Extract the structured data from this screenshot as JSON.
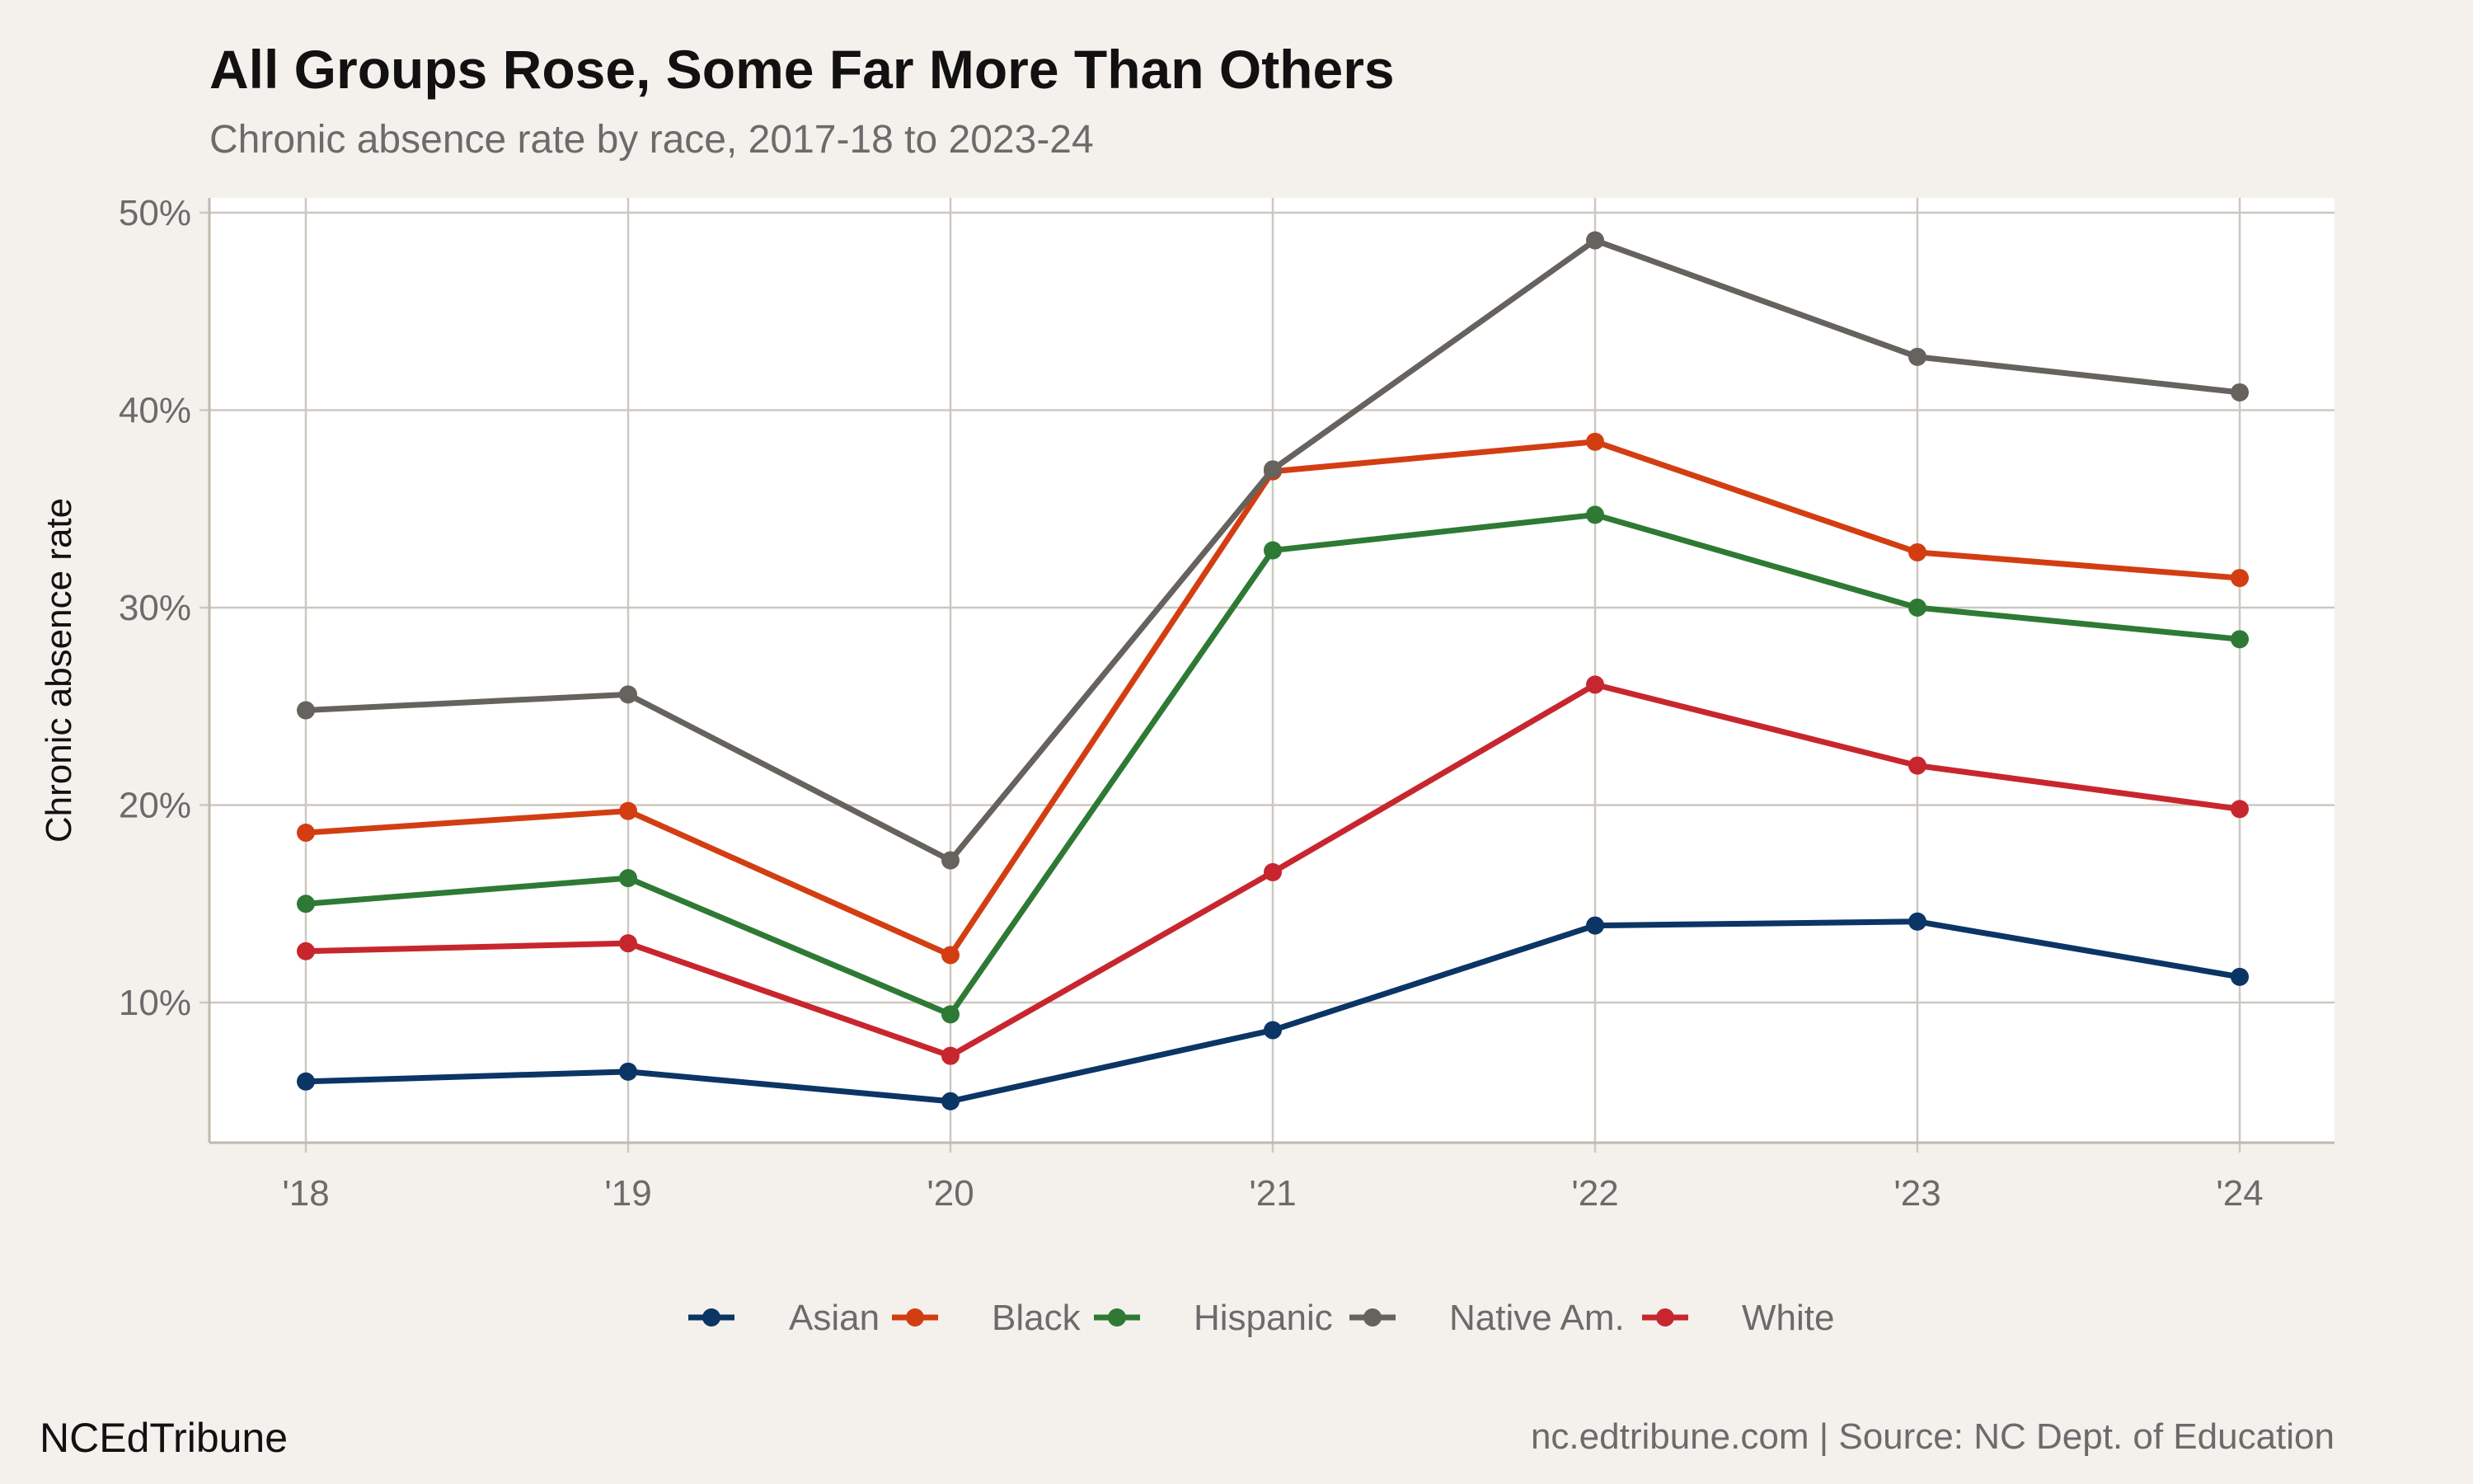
{
  "header": {
    "title": "All Groups Rose, Some Far More Than Others",
    "subtitle": "Chronic absence rate by race, 2017-18 to 2023-24"
  },
  "footer": {
    "brand": "NCEdTribune",
    "source": "nc.edtribune.com | Source: NC Dept. of Education"
  },
  "chart_data": {
    "type": "line",
    "x": [
      "'18",
      "'19",
      "'20",
      "'21",
      "'22",
      "'23",
      "'24"
    ],
    "ylabel": "Chronic absence rate",
    "xlabel": "",
    "ylim": [
      3,
      50
    ],
    "yticks": [
      10,
      20,
      30,
      40,
      50
    ],
    "ytick_labels": [
      "10%",
      "20%",
      "30%",
      "40%",
      "50%"
    ],
    "grid": true,
    "legend_position": "bottom",
    "series": [
      {
        "name": "Asian",
        "color": "#0b3565",
        "values": [
          6.0,
          6.5,
          5.0,
          8.6,
          13.9,
          14.1,
          11.3
        ]
      },
      {
        "name": "Black",
        "color": "#d23e12",
        "values": [
          18.6,
          19.7,
          12.4,
          36.9,
          38.4,
          32.8,
          31.5
        ]
      },
      {
        "name": "Hispanic",
        "color": "#2e7a34",
        "values": [
          15.0,
          16.3,
          9.4,
          32.9,
          34.7,
          30.0,
          28.4
        ]
      },
      {
        "name": "Native Am.",
        "color": "#66625e",
        "values": [
          24.8,
          25.6,
          17.2,
          37.0,
          48.6,
          42.7,
          40.9
        ]
      },
      {
        "name": "White",
        "color": "#c8262e",
        "values": [
          12.6,
          13.0,
          7.3,
          16.6,
          26.1,
          22.0,
          19.8
        ]
      }
    ]
  }
}
